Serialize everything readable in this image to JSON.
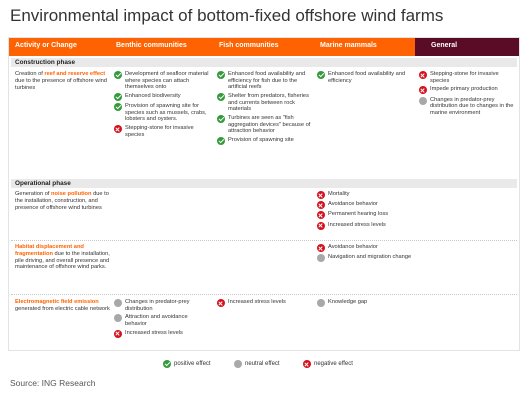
{
  "title": "Environmental impact of bottom-fixed offshore wind farms",
  "source": "Source: ING Research",
  "columns": [
    "Activity or Change",
    "Benthic communities",
    "Fish communities",
    "Marine mammals",
    "General"
  ],
  "colors": {
    "accent": "#ff6200",
    "general_header": "#5a0c27",
    "positive": "#349a3c",
    "neutral": "#a8a8a8",
    "negative": "#d4111c"
  },
  "phases": {
    "construction": "Construction phase",
    "operational": "Operational phase"
  },
  "rows": {
    "reef": {
      "label_pre": "Creation of ",
      "label_hl": "reef and reserve effect",
      "label_post": " due to the presence of offshore wind turbines",
      "benthic": [
        {
          "t": "Development of seafloor material where species can attach themselves onto",
          "e": "positive"
        },
        {
          "t": "Enhanced biodiversity",
          "e": "positive"
        },
        {
          "t": "Provision of spawning site for species such as mussels, crabs, lobsters and oysters.",
          "e": "positive"
        },
        {
          "t": "Stepping-stone for invasive species",
          "e": "negative"
        }
      ],
      "fish": [
        {
          "t": "Enhanced food availability and efficiency for fish due to the artificial reefs",
          "e": "positive"
        },
        {
          "t": "Shelter from predators, fisheries and currents between rock materials",
          "e": "positive"
        },
        {
          "t": "Turbines are seen as \"fish aggregation devices\" because of attraction behavior",
          "e": "positive"
        },
        {
          "t": "Provision of spawning site",
          "e": "positive"
        }
      ],
      "mammals": [
        {
          "t": "Enhanced food availability and efficiency",
          "e": "positive"
        }
      ],
      "general": [
        {
          "t": "Stepping-stone for invasive species",
          "e": "negative"
        },
        {
          "t": "Impede primary production",
          "e": "negative"
        },
        {
          "t": "Changes in predator-prey distribution due to changes in the marine environment",
          "e": "neutral"
        }
      ]
    },
    "noise": {
      "label_pre": "Generation of ",
      "label_hl": "noise pollution",
      "label_post": " due to the installation, construction, and presence of offshore wind turbines",
      "mammals": [
        {
          "t": "Mortality",
          "e": "negative"
        },
        {
          "t": "Avoidance behavior",
          "e": "negative"
        },
        {
          "t": "Permanent hearing loss",
          "e": "negative"
        },
        {
          "t": "Increased stress levels",
          "e": "negative"
        }
      ]
    },
    "habitat": {
      "label_pre": "",
      "label_hl": "Habitat displacement and fragmentation",
      "label_post": " due to the installation, pile driving, and overall presence and maintenance of offshore wind parks.",
      "mammals": [
        {
          "t": "Avoidance behavior",
          "e": "negative"
        },
        {
          "t": "Navigation and migration change",
          "e": "neutral"
        }
      ]
    },
    "emf": {
      "label_pre": "",
      "label_hl": "Electromagnetic field emission",
      "label_post": " generated from electric cable network",
      "benthic": [
        {
          "t": "Changes in predator-prey distribution",
          "e": "neutral"
        },
        {
          "t": "Attraction and avoidance behavior",
          "e": "neutral"
        },
        {
          "t": "Increased stress levels",
          "e": "negative"
        }
      ],
      "fish": [
        {
          "t": "Increased stress levels",
          "e": "negative"
        }
      ],
      "mammals": [
        {
          "t": "Knowledge gap",
          "e": "neutral"
        }
      ]
    }
  },
  "legend": [
    {
      "t": "positive effect",
      "e": "positive"
    },
    {
      "t": "neutral effect",
      "e": "neutral"
    },
    {
      "t": "negative effect",
      "e": "negative"
    }
  ]
}
